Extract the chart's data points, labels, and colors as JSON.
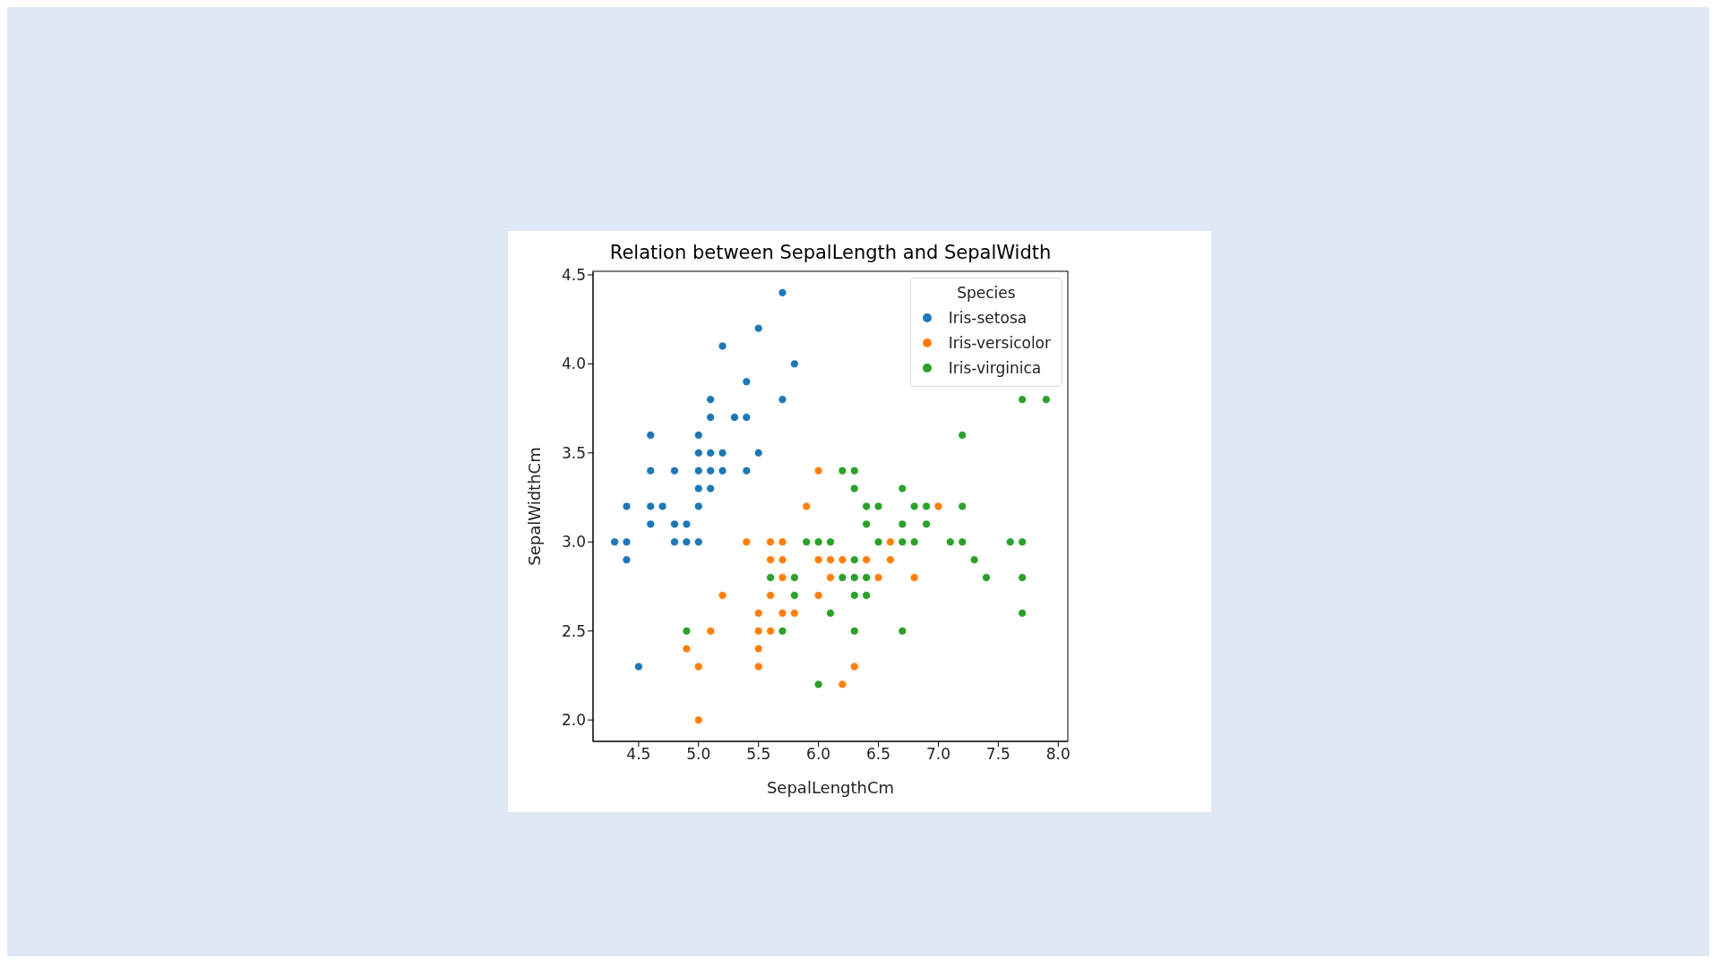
{
  "chart_data": {
    "type": "scatter",
    "title": "Relation between SepalLength and SepalWidth",
    "xlabel": "SepalLengthCm",
    "ylabel": "SepalWidthCm",
    "legend_title": "Species",
    "legend": "top right",
    "marker": "circle",
    "grid": false,
    "xlim": [
      4.12,
      8.08
    ],
    "xticks": [
      {
        "value": 4.5,
        "label": "4.5"
      },
      {
        "value": 5,
        "label": "5.0"
      },
      {
        "value": 5.5,
        "label": "5.5"
      },
      {
        "value": 6,
        "label": "6.0"
      },
      {
        "value": 6.5,
        "label": "6.5"
      },
      {
        "value": 7,
        "label": "7.0"
      },
      {
        "value": 7.5,
        "label": "7.5"
      },
      {
        "value": 8,
        "label": "8.0"
      }
    ],
    "ylim": [
      1.88,
      4.52
    ],
    "yticks": [
      {
        "value": 2,
        "label": "2.0"
      },
      {
        "value": 2.5,
        "label": "2.5"
      },
      {
        "value": 3,
        "label": "3.0"
      },
      {
        "value": 3.5,
        "label": "3.5"
      },
      {
        "value": 4,
        "label": "4.0"
      },
      {
        "value": 4.5,
        "label": "4.5"
      }
    ],
    "series": [
      {
        "name": "Iris-setosa",
        "color": "#1f77b4",
        "x": [
          5.1,
          4.9,
          4.7,
          4.6,
          5.0,
          5.4,
          4.6,
          5.0,
          4.4,
          4.9,
          5.4,
          4.8,
          4.8,
          4.3,
          5.8,
          5.7,
          5.7,
          5.1,
          5.4,
          5.1,
          4.6,
          5.1,
          5.0,
          5.2,
          5.2,
          4.8,
          5.2,
          5.5,
          5.0,
          5.5,
          4.4,
          5.1,
          5.0,
          4.5,
          4.4,
          4.6,
          5.3,
          5.0
        ],
        "values": [
          3.5,
          3.0,
          3.2,
          3.1,
          3.6,
          3.9,
          3.4,
          3.4,
          2.9,
          3.1,
          3.7,
          3.4,
          3.0,
          3.0,
          4.0,
          4.4,
          3.8,
          3.8,
          3.4,
          3.7,
          3.6,
          3.3,
          3.0,
          3.5,
          3.4,
          3.1,
          4.1,
          4.2,
          3.2,
          3.5,
          3.0,
          3.4,
          3.5,
          2.3,
          3.2,
          3.2,
          3.7,
          3.3
        ]
      },
      {
        "name": "Iris-versicolor",
        "color": "#ff7f0e",
        "x": [
          7.0,
          5.5,
          6.5,
          5.7,
          4.9,
          6.6,
          5.2,
          5.0,
          6.1,
          5.6,
          5.6,
          6.2,
          5.6,
          5.9,
          6.1,
          6.4,
          6.6,
          6.8,
          6.0,
          5.7,
          5.5,
          6.0,
          5.4,
          6.0,
          6.3,
          5.5,
          5.5,
          5.8,
          5.0,
          5.6,
          5.7,
          5.7,
          6.2,
          5.1
        ],
        "values": [
          3.2,
          2.3,
          2.8,
          2.8,
          2.4,
          2.9,
          2.7,
          2.0,
          2.9,
          2.9,
          3.0,
          2.2,
          2.5,
          3.2,
          2.8,
          2.9,
          3.0,
          2.8,
          2.9,
          2.6,
          2.4,
          2.7,
          3.0,
          3.4,
          2.3,
          2.5,
          2.6,
          2.6,
          2.3,
          2.7,
          3.0,
          2.9,
          2.9,
          2.5
        ]
      },
      {
        "name": "Iris-virginica",
        "color": "#2ca02c",
        "x": [
          6.3,
          5.8,
          7.1,
          6.3,
          6.5,
          7.6,
          4.9,
          7.3,
          6.7,
          7.2,
          6.5,
          6.4,
          6.8,
          5.7,
          5.8,
          6.4,
          7.7,
          7.7,
          6.0,
          6.9,
          5.6,
          7.7,
          6.3,
          6.7,
          7.2,
          6.2,
          6.1,
          6.4,
          7.2,
          7.4,
          7.9,
          6.3,
          6.1,
          7.7,
          6.3,
          6.4,
          6.0,
          6.9,
          6.7,
          6.8,
          6.7,
          6.3,
          6.2,
          5.9
        ],
        "values": [
          3.3,
          2.7,
          3.0,
          2.9,
          3.0,
          3.0,
          2.5,
          2.9,
          2.5,
          3.6,
          3.2,
          2.7,
          3.0,
          2.5,
          2.8,
          3.2,
          3.8,
          2.6,
          2.2,
          3.2,
          2.8,
          2.8,
          2.7,
          3.3,
          3.2,
          2.8,
          3.0,
          2.8,
          3.0,
          2.8,
          3.8,
          2.8,
          2.6,
          3.0,
          3.4,
          3.1,
          3.0,
          3.1,
          3.1,
          3.2,
          3.0,
          2.5,
          3.4,
          3.0
        ]
      }
    ]
  }
}
